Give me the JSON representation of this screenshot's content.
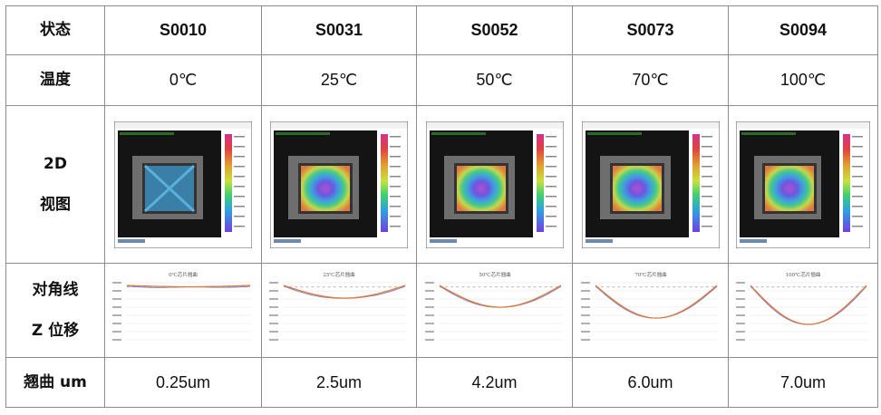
{
  "row_labels": {
    "status": "状态",
    "temperature": "温度",
    "view_2d": [
      "2D",
      "视图"
    ],
    "diagonal_z": [
      "对角线",
      "Z 位移"
    ],
    "warpage": "翘曲 um"
  },
  "samples": [
    {
      "id": "S0010",
      "temperature": "0℃",
      "warpage": "0.25um",
      "curve_title": "0℃芯片翘曲",
      "pattern": "cross"
    },
    {
      "id": "S0031",
      "temperature": "25℃",
      "warpage": "2.5um",
      "curve_title": "25℃芯片翘曲",
      "pattern": "bowl"
    },
    {
      "id": "S0052",
      "temperature": "50℃",
      "warpage": "4.2um",
      "curve_title": "50℃芯片翘曲",
      "pattern": "bowl"
    },
    {
      "id": "S0073",
      "temperature": "70℃",
      "warpage": "6.0um",
      "curve_title": "70℃芯片翘曲",
      "pattern": "bowl"
    },
    {
      "id": "S0094",
      "temperature": "100℃",
      "warpage": "7.0um",
      "curve_title": "100℃芯片翘曲",
      "pattern": "bowl"
    }
  ],
  "colors": {
    "grid_border": "#8c8c8c",
    "curve_line": "#e07b39",
    "scan_bg": "#111111"
  }
}
